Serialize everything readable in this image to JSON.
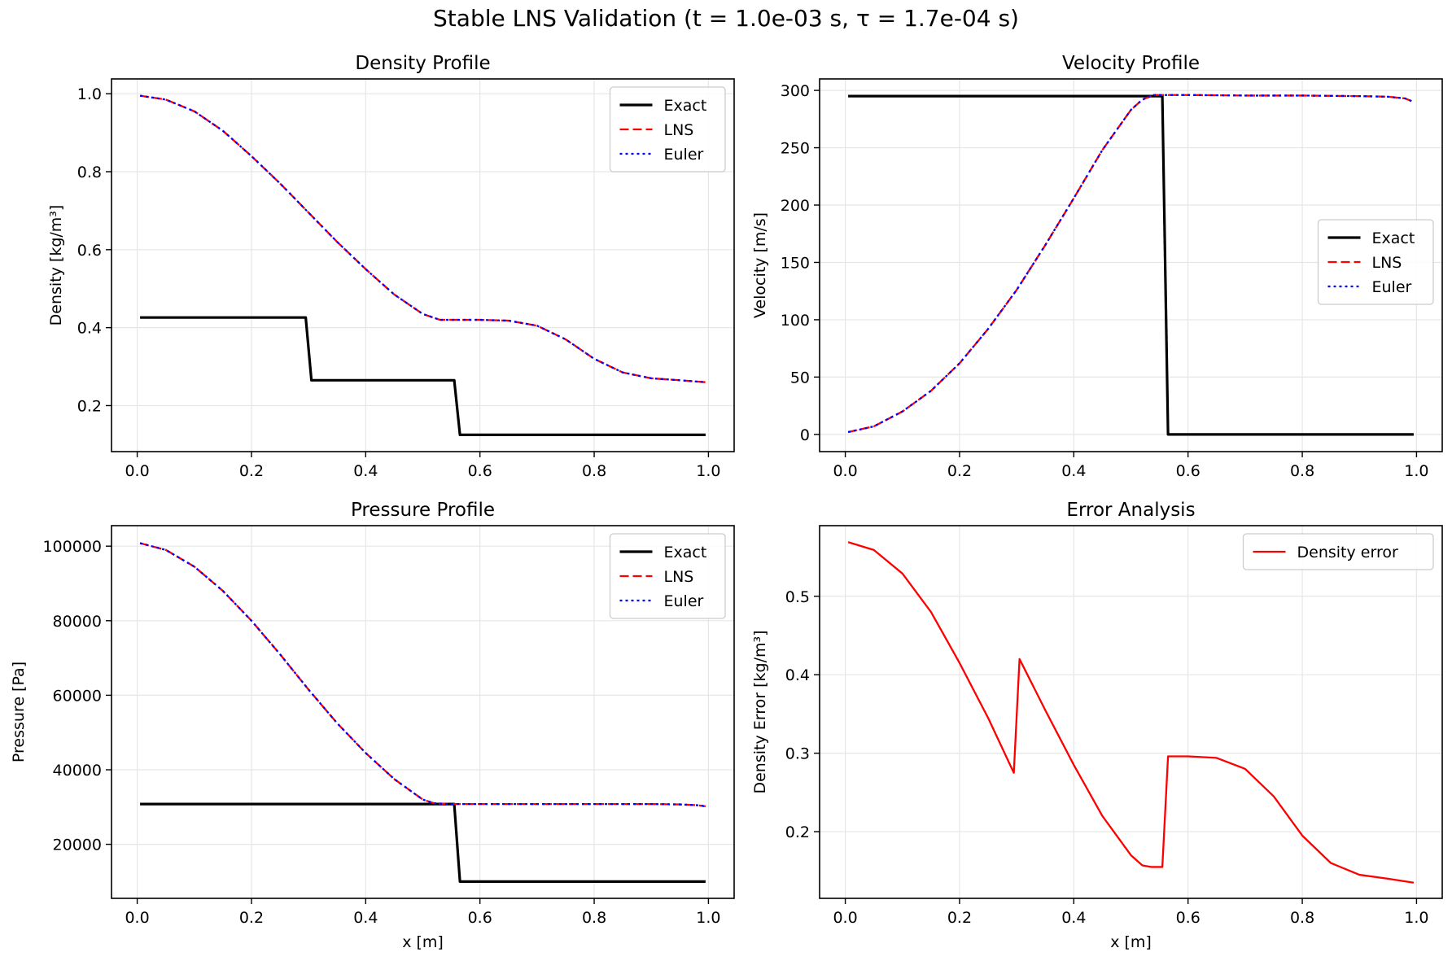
{
  "figure": {
    "title": "Stable LNS Validation (t = 1.0e-03 s, τ = 1.7e-04 s)"
  },
  "colors": {
    "exact": "#000000",
    "lns": "#ff0000",
    "euler": "#0000ff",
    "error": "#ff0000",
    "grid": "#e6e6e6",
    "axes": "#000000"
  },
  "chart_data": [
    {
      "type": "line",
      "title": "Density Profile",
      "xlabel": "",
      "ylabel": "Density [kg/m³]",
      "xlim": [
        -0.045,
        1.045
      ],
      "ylim": [
        0.082,
        1.038
      ],
      "xticks": [
        0.0,
        0.2,
        0.4,
        0.6,
        0.8,
        1.0
      ],
      "xtick_labels": [
        "0.0",
        "0.2",
        "0.4",
        "0.6",
        "0.8",
        "1.0"
      ],
      "yticks": [
        0.2,
        0.4,
        0.6,
        0.8,
        1.0
      ],
      "ytick_labels": [
        "0.2",
        "0.4",
        "0.6",
        "0.8",
        "1.0"
      ],
      "grid": true,
      "legend": "top-right",
      "series": [
        {
          "name": "Exact",
          "style": "solid",
          "color": "#000000",
          "x": [
            0.005,
            0.295,
            0.305,
            0.555,
            0.565,
            0.995
          ],
          "y": [
            0.426,
            0.426,
            0.265,
            0.265,
            0.125,
            0.125
          ]
        },
        {
          "name": "LNS",
          "style": "dashed",
          "color": "#ff0000",
          "x": [
            0.005,
            0.05,
            0.1,
            0.15,
            0.2,
            0.25,
            0.3,
            0.35,
            0.4,
            0.45,
            0.5,
            0.53,
            0.55,
            0.6,
            0.65,
            0.7,
            0.75,
            0.8,
            0.85,
            0.9,
            0.95,
            0.995
          ],
          "y": [
            0.995,
            0.985,
            0.955,
            0.905,
            0.84,
            0.77,
            0.695,
            0.62,
            0.55,
            0.485,
            0.435,
            0.42,
            0.42,
            0.42,
            0.418,
            0.405,
            0.37,
            0.32,
            0.285,
            0.27,
            0.265,
            0.26
          ]
        },
        {
          "name": "Euler",
          "style": "dotted",
          "color": "#0000ff",
          "x": [
            0.005,
            0.05,
            0.1,
            0.15,
            0.2,
            0.25,
            0.3,
            0.35,
            0.4,
            0.45,
            0.5,
            0.53,
            0.55,
            0.6,
            0.65,
            0.7,
            0.75,
            0.8,
            0.85,
            0.9,
            0.95,
            0.995
          ],
          "y": [
            0.995,
            0.985,
            0.955,
            0.905,
            0.84,
            0.77,
            0.695,
            0.62,
            0.55,
            0.485,
            0.435,
            0.42,
            0.42,
            0.42,
            0.418,
            0.405,
            0.37,
            0.32,
            0.285,
            0.27,
            0.265,
            0.26
          ]
        }
      ]
    },
    {
      "type": "line",
      "title": "Velocity Profile",
      "xlabel": "",
      "ylabel": "Velocity [m/s]",
      "xlim": [
        -0.045,
        1.045
      ],
      "ylim": [
        -15,
        310
      ],
      "xticks": [
        0.0,
        0.2,
        0.4,
        0.6,
        0.8,
        1.0
      ],
      "xtick_labels": [
        "0.0",
        "0.2",
        "0.4",
        "0.6",
        "0.8",
        "1.0"
      ],
      "yticks": [
        0,
        50,
        100,
        150,
        200,
        250,
        300
      ],
      "ytick_labels": [
        "0",
        "50",
        "100",
        "150",
        "200",
        "250",
        "300"
      ],
      "grid": true,
      "legend": "center-right",
      "series": [
        {
          "name": "Exact",
          "style": "solid",
          "color": "#000000",
          "x": [
            0.005,
            0.555,
            0.565,
            0.995
          ],
          "y": [
            295,
            295,
            0,
            0
          ]
        },
        {
          "name": "LNS",
          "style": "dashed",
          "color": "#ff0000",
          "x": [
            0.005,
            0.05,
            0.1,
            0.15,
            0.2,
            0.25,
            0.3,
            0.35,
            0.4,
            0.45,
            0.5,
            0.52,
            0.54,
            0.6,
            0.7,
            0.8,
            0.9,
            0.95,
            0.98,
            0.995
          ],
          "y": [
            2,
            7,
            20,
            38,
            62,
            92,
            126,
            165,
            206,
            248,
            283,
            292,
            296,
            296,
            295.5,
            295.5,
            295,
            294.5,
            293,
            290
          ]
        },
        {
          "name": "Euler",
          "style": "dotted",
          "color": "#0000ff",
          "x": [
            0.005,
            0.05,
            0.1,
            0.15,
            0.2,
            0.25,
            0.3,
            0.35,
            0.4,
            0.45,
            0.5,
            0.52,
            0.54,
            0.6,
            0.7,
            0.8,
            0.9,
            0.95,
            0.98,
            0.995
          ],
          "y": [
            2,
            7,
            20,
            38,
            62,
            92,
            126,
            165,
            206,
            248,
            283,
            292,
            296,
            296,
            295.5,
            295.5,
            295,
            294.5,
            293,
            290
          ]
        }
      ]
    },
    {
      "type": "line",
      "title": "Pressure Profile",
      "xlabel": "x [m]",
      "ylabel": "Pressure [Pa]",
      "xlim": [
        -0.045,
        1.045
      ],
      "ylim": [
        5500,
        105500
      ],
      "xticks": [
        0.0,
        0.2,
        0.4,
        0.6,
        0.8,
        1.0
      ],
      "xtick_labels": [
        "0.0",
        "0.2",
        "0.4",
        "0.6",
        "0.8",
        "1.0"
      ],
      "yticks": [
        20000,
        40000,
        60000,
        80000,
        100000
      ],
      "ytick_labels": [
        "20000",
        "40000",
        "60000",
        "80000",
        "100000"
      ],
      "grid": true,
      "legend": "top-right",
      "series": [
        {
          "name": "Exact",
          "style": "solid",
          "color": "#000000",
          "x": [
            0.005,
            0.555,
            0.565,
            0.995
          ],
          "y": [
            30800,
            30800,
            10000,
            10000
          ]
        },
        {
          "name": "LNS",
          "style": "dashed",
          "color": "#ff0000",
          "x": [
            0.005,
            0.05,
            0.1,
            0.15,
            0.2,
            0.25,
            0.3,
            0.35,
            0.4,
            0.45,
            0.5,
            0.52,
            0.55,
            0.6,
            0.7,
            0.8,
            0.9,
            0.95,
            0.98,
            0.995
          ],
          "y": [
            100800,
            99000,
            94500,
            88000,
            80000,
            71000,
            61500,
            52500,
            44500,
            37500,
            32000,
            31000,
            30800,
            30800,
            30800,
            30800,
            30800,
            30700,
            30500,
            30200
          ]
        },
        {
          "name": "Euler",
          "style": "dotted",
          "color": "#0000ff",
          "x": [
            0.005,
            0.05,
            0.1,
            0.15,
            0.2,
            0.25,
            0.3,
            0.35,
            0.4,
            0.45,
            0.5,
            0.52,
            0.55,
            0.6,
            0.7,
            0.8,
            0.9,
            0.95,
            0.98,
            0.995
          ],
          "y": [
            100800,
            99000,
            94500,
            88000,
            80000,
            71000,
            61500,
            52500,
            44500,
            37500,
            32000,
            31000,
            30800,
            30800,
            30800,
            30800,
            30800,
            30700,
            30500,
            30200
          ]
        }
      ]
    },
    {
      "type": "line",
      "title": "Error Analysis",
      "xlabel": "x [m]",
      "ylabel": "Density Error [kg/m³]",
      "xlim": [
        -0.045,
        1.045
      ],
      "ylim": [
        0.115,
        0.59
      ],
      "xticks": [
        0.0,
        0.2,
        0.4,
        0.6,
        0.8,
        1.0
      ],
      "xtick_labels": [
        "0.0",
        "0.2",
        "0.4",
        "0.6",
        "0.8",
        "1.0"
      ],
      "yticks": [
        0.2,
        0.3,
        0.4,
        0.5
      ],
      "ytick_labels": [
        "0.2",
        "0.3",
        "0.4",
        "0.5"
      ],
      "grid": true,
      "legend": "top-right",
      "series": [
        {
          "name": "Density error",
          "style": "solid",
          "color": "#ff0000",
          "x": [
            0.005,
            0.05,
            0.1,
            0.15,
            0.2,
            0.25,
            0.295,
            0.305,
            0.35,
            0.4,
            0.45,
            0.5,
            0.52,
            0.535,
            0.555,
            0.565,
            0.6,
            0.65,
            0.7,
            0.75,
            0.8,
            0.85,
            0.9,
            0.95,
            0.995
          ],
          "y": [
            0.569,
            0.559,
            0.529,
            0.48,
            0.415,
            0.345,
            0.275,
            0.42,
            0.355,
            0.285,
            0.22,
            0.17,
            0.157,
            0.155,
            0.155,
            0.296,
            0.296,
            0.294,
            0.28,
            0.245,
            0.195,
            0.16,
            0.145,
            0.14,
            0.135
          ]
        }
      ]
    }
  ]
}
